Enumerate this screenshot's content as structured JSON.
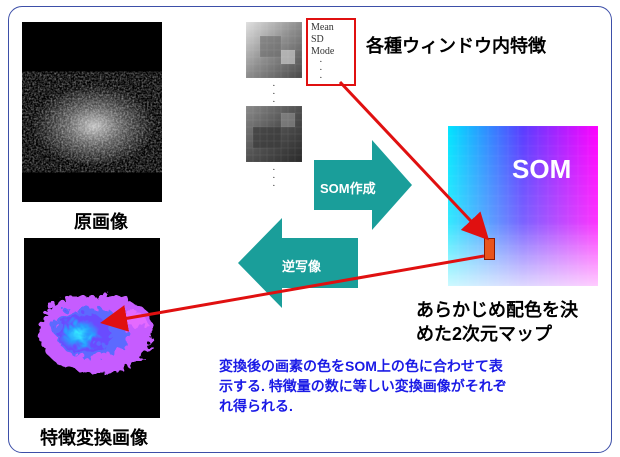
{
  "labels": {
    "window_features": "各種ウィンドウ内特徴",
    "original_image": "原画像",
    "som_create": "SOM作成",
    "inverse_map": "逆写像",
    "som": "SOM",
    "som_desc_line1": "あらかじめ配色を決",
    "som_desc_line2": "めた2次元マップ",
    "feature_transformed": "特徴変換画像",
    "caption_line1": "変換後の画素の色をSOM上の色に合わせて表",
    "caption_line2": "示する. 特徴量の数に等しい変換画像がそれぞ",
    "caption_line3": "れ得られる."
  },
  "feature_list": {
    "items": [
      "Mean",
      "SD",
      "Mode"
    ]
  },
  "colors": {
    "frame": "#3d4fa8",
    "teal_arrow": "#1a9e9a",
    "red": "#e01010",
    "caption_blue": "#1a1ae6"
  }
}
